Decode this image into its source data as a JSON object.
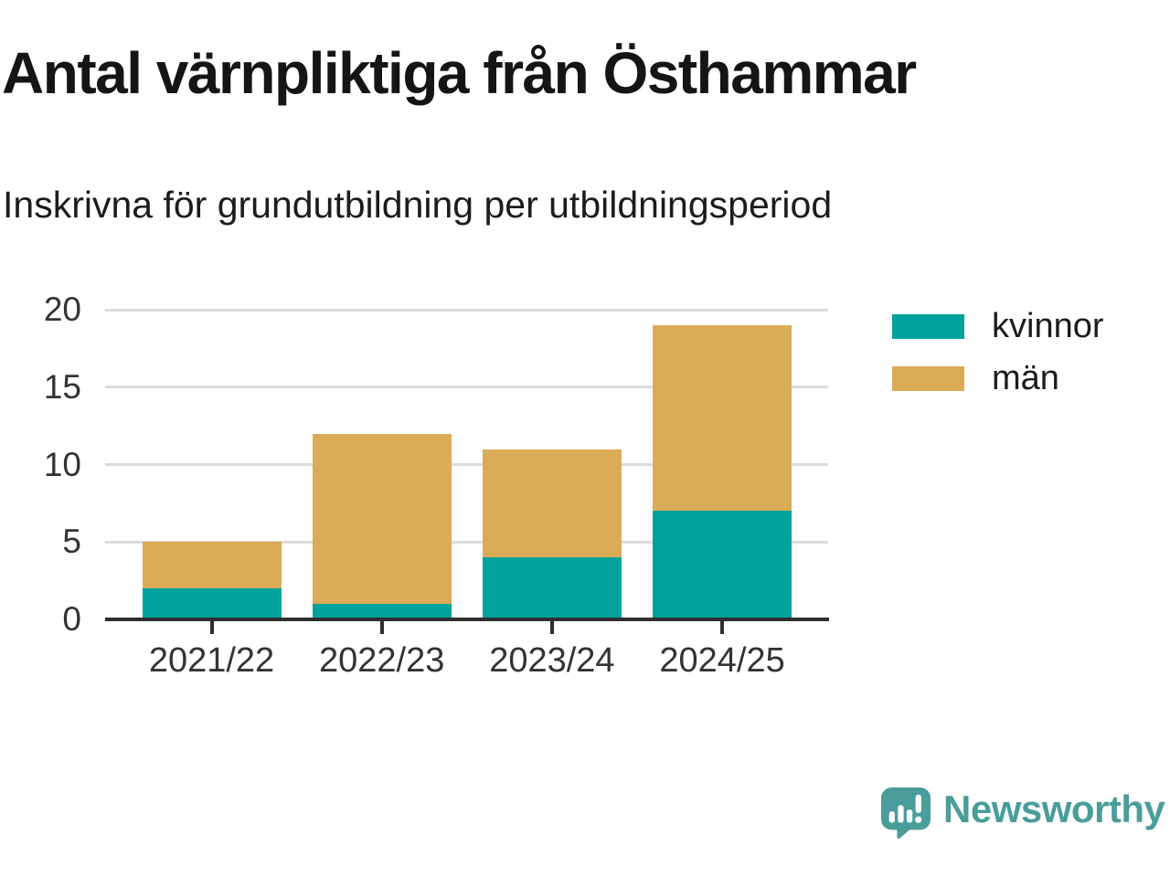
{
  "header": {
    "title": "Antal värnpliktiga från Östhammar",
    "subtitle": "Inskrivna för grundutbildning per utbildningsperiod"
  },
  "chart_data": {
    "type": "bar",
    "stacked": true,
    "categories": [
      "2021/22",
      "2022/23",
      "2023/24",
      "2024/25"
    ],
    "series": [
      {
        "name": "kvinnor",
        "color": "#00A29B",
        "values": [
          2,
          1,
          4,
          7
        ]
      },
      {
        "name": "män",
        "color": "#DBAB58",
        "values": [
          3,
          11,
          7,
          12
        ]
      }
    ],
    "totals": [
      5,
      12,
      11,
      19
    ],
    "ylim": [
      0,
      20
    ],
    "yticks": [
      0,
      5,
      10,
      15,
      20
    ],
    "xlabel": "",
    "ylabel": "",
    "grid": "horizontal",
    "legend_position": "right"
  },
  "colors": {
    "background": "#FFFFFF",
    "title_text": "#151513",
    "axis_text": "#333333",
    "axis_line": "#2F2F2F",
    "gridline": "#DBDBDB"
  },
  "footer": {
    "brand": "Newsworthy",
    "brand_color": "#4A9D9A",
    "logo_icon": "speech-bubble-bar-chart-icon"
  }
}
